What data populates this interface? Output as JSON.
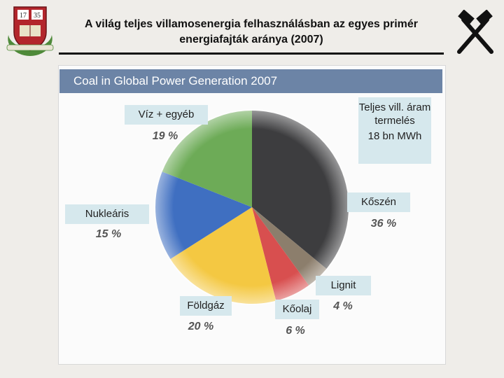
{
  "header": {
    "title_line1": "A világ teljes villamosenergia felhasználásban az egyes primér",
    "title_line2": "energiafajták aránya (2007)"
  },
  "logos": {
    "left_crest_year_left": "17",
    "left_crest_year_right": "35",
    "left_icon": "university-crest-icon",
    "right_icon": "crossed-hammers-icon"
  },
  "chart_data": {
    "type": "pie",
    "title": "Coal in Global Power Generation 2007",
    "total_label": "Teljes vill. áram termelés",
    "total_value": "18 bn MWh",
    "slices": [
      {
        "name": "Kőszén",
        "value": 36,
        "value_label": "36 %",
        "color": "#3d3d3f"
      },
      {
        "name": "Lignit",
        "value": 4,
        "value_label": "4 %",
        "color": "#8c7e6c"
      },
      {
        "name": "Kőolaj",
        "value": 6,
        "value_label": "6 %",
        "color": "#d84f4f"
      },
      {
        "name": "Földgáz",
        "value": 20,
        "value_label": "20 %",
        "color": "#f4c842"
      },
      {
        "name": "Nukleáris",
        "value": 15,
        "value_label": "15 %",
        "color": "#3f6fc1"
      },
      {
        "name": "Víz + egyéb",
        "value": 19,
        "value_label": "19 %",
        "color": "#6dab57"
      }
    ]
  }
}
